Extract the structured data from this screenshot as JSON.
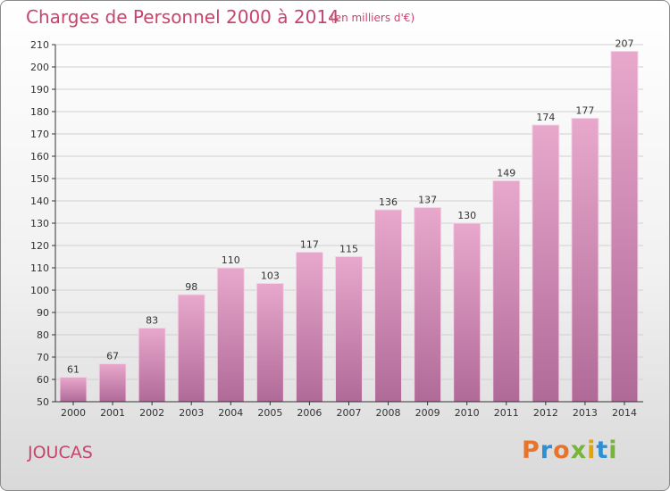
{
  "header": {
    "title": "Charges de Personnel 2000 à 2014",
    "subtitle": "(en milliers d'€)"
  },
  "footer": {
    "place": "JOUCAS",
    "logo_text": "Proxiti",
    "logo_colors": [
      "#e8742c",
      "#2f8fd0",
      "#e8742c",
      "#78b33a",
      "#e2a400",
      "#2f8fd0",
      "#78b33a"
    ]
  },
  "colors": {
    "bar_top": "#e8a8cc",
    "bar_bottom": "#b06a98",
    "bar_edge": "#f5d3e6",
    "axis": "#333333",
    "grid": "#d0d0d0",
    "text": "#333333",
    "accent": "#c8446c"
  },
  "chart_data": {
    "type": "bar",
    "title": "Charges de Personnel 2000 à 2014",
    "subtitle": "(en milliers d'€)",
    "xlabel": "",
    "ylabel": "",
    "categories": [
      "2000",
      "2001",
      "2002",
      "2003",
      "2004",
      "2005",
      "2006",
      "2007",
      "2008",
      "2009",
      "2010",
      "2011",
      "2012",
      "2013",
      "2014"
    ],
    "values": [
      61,
      67,
      83,
      98,
      110,
      103,
      117,
      115,
      136,
      137,
      130,
      149,
      174,
      177,
      207
    ],
    "ylim": [
      50,
      210
    ],
    "yticks": [
      50,
      60,
      70,
      80,
      90,
      100,
      110,
      120,
      130,
      140,
      150,
      160,
      170,
      180,
      190,
      200,
      210
    ],
    "grid": true,
    "legend": "none"
  }
}
